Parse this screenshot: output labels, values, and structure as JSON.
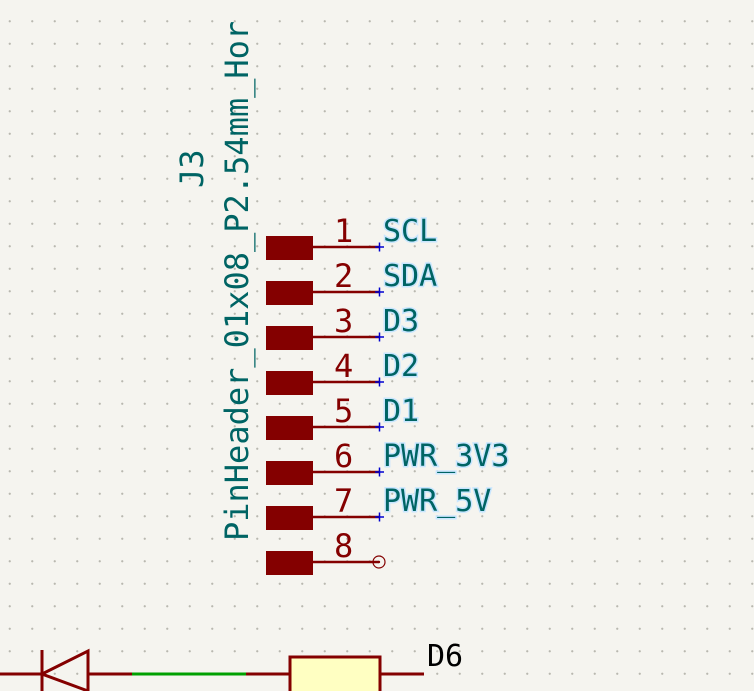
{
  "component": {
    "reference": "J3",
    "value": "PinHeader_01x08_P2.54mm_Hor"
  },
  "pins": [
    {
      "number": "1",
      "net": "SCL"
    },
    {
      "number": "2",
      "net": "SDA"
    },
    {
      "number": "3",
      "net": "D3"
    },
    {
      "number": "4",
      "net": "D2"
    },
    {
      "number": "5",
      "net": "D1"
    },
    {
      "number": "6",
      "net": "PWR_3V3"
    },
    {
      "number": "7",
      "net": "PWR_5V"
    },
    {
      "number": "8",
      "net": ""
    }
  ],
  "lower_component": {
    "label": "D6"
  },
  "colors": {
    "background": "#f5f4ef",
    "pin": "#840000",
    "label": "#006464",
    "label_halo": "#c8e6ff",
    "wire": "#00a000",
    "body_fill": "#ffffc2"
  }
}
